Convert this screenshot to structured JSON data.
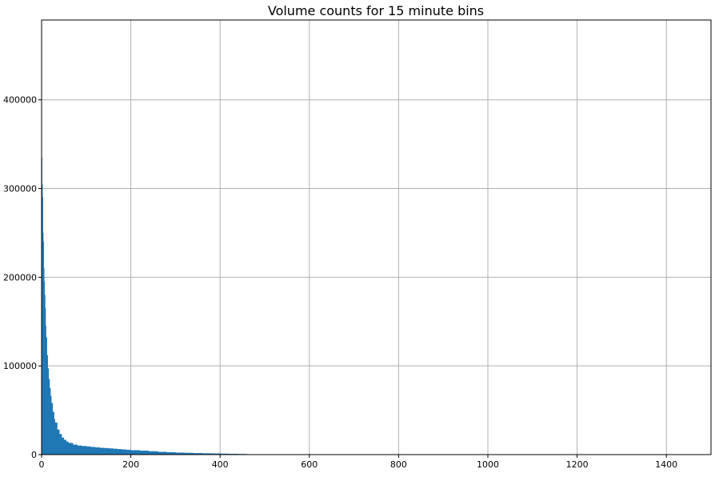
{
  "chart_data": {
    "type": "bar",
    "title": "Volume counts for 15 minute bins",
    "xlabel": "",
    "ylabel": "",
    "xlim": [
      0,
      1500
    ],
    "ylim": [
      0,
      490000
    ],
    "grid": true,
    "bar_color": "#1f77b4",
    "x_ticks": [
      0,
      200,
      400,
      600,
      800,
      1000,
      1200,
      1400
    ],
    "x_tick_labels": [
      "0",
      "200",
      "400",
      "600",
      "800",
      "1000",
      "1200",
      "1400"
    ],
    "y_ticks": [
      0,
      100000,
      200000,
      300000,
      400000
    ],
    "y_tick_labels": [
      "0",
      "100000",
      "200000",
      "300000",
      "400000"
    ],
    "series": [
      {
        "bin_width": 1,
        "x": [
          0,
          1,
          2,
          3,
          4,
          5,
          6,
          7,
          8,
          9,
          10,
          12,
          14,
          16,
          18,
          20,
          22,
          25,
          28,
          30,
          35,
          40,
          45,
          50,
          55,
          60,
          70,
          80,
          90,
          100,
          110,
          120,
          130,
          140,
          150,
          160,
          170,
          180,
          190,
          200,
          220,
          240,
          260,
          280,
          300,
          320,
          340,
          360,
          380,
          400,
          420,
          440,
          460
        ],
        "values": [
          335000,
          305000,
          290000,
          250000,
          240000,
          210000,
          195000,
          180000,
          165000,
          145000,
          132000,
          112000,
          97000,
          85000,
          75000,
          66000,
          58000,
          48000,
          40000,
          36000,
          28000,
          23000,
          19000,
          16500,
          14500,
          13000,
          11000,
          10000,
          9500,
          9000,
          8500,
          8000,
          7500,
          7200,
          6800,
          6400,
          6000,
          5600,
          5200,
          4800,
          4200,
          3600,
          3000,
          2500,
          2100,
          1800,
          1500,
          1300,
          1100,
          900,
          700,
          500,
          300
        ]
      }
    ]
  }
}
